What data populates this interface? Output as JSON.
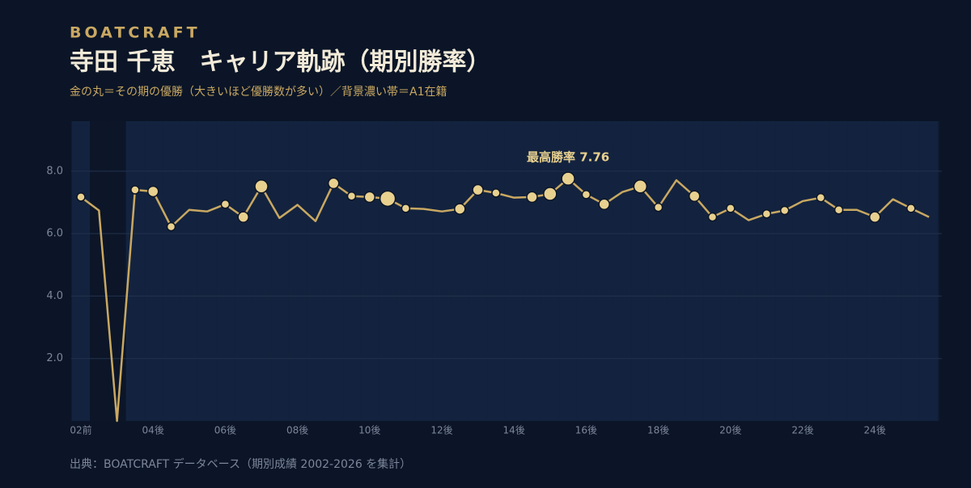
{
  "chart_data": {
    "type": "line",
    "brand": "BOATCRAFT",
    "title": "寺田 千恵　キャリア軌跡（期別勝率）",
    "subtitle": "金の丸＝その期の優勝（大きいほど優勝数が多い）／背景濃い帯＝A1在籍",
    "source": "出典：BOATCRAFT データベース（期別成績 2002-2026 を集計）",
    "annotation": "最高勝率 7.76",
    "categories": [
      "02前",
      null,
      null,
      null,
      "04後",
      null,
      null,
      null,
      "06後",
      null,
      null,
      null,
      "08後",
      null,
      null,
      null,
      "10後",
      null,
      null,
      null,
      "12後",
      null,
      null,
      null,
      "14後",
      null,
      null,
      null,
      "16後",
      null,
      null,
      null,
      "18後",
      null,
      null,
      null,
      "20後",
      null,
      null,
      null,
      "22後",
      null,
      null,
      null,
      "24後",
      null,
      null,
      null
    ],
    "a1": [
      true,
      false,
      false,
      true,
      true,
      true,
      true,
      true,
      true,
      true,
      true,
      true,
      true,
      true,
      true,
      true,
      true,
      true,
      true,
      true,
      true,
      true,
      true,
      true,
      true,
      true,
      true,
      true,
      true,
      true,
      true,
      true,
      true,
      true,
      true,
      true,
      true,
      true,
      true,
      true,
      true,
      true,
      true,
      true,
      true,
      true,
      true,
      true
    ],
    "series": [
      {
        "name": "勝率",
        "color": "#c9a862",
        "marker_color": "#e8d08f",
        "values": [
          7.17,
          6.74,
          0,
          7.4,
          7.35,
          6.22,
          6.76,
          6.71,
          6.94,
          6.53,
          7.51,
          6.5,
          6.92,
          6.4,
          7.61,
          7.2,
          7.17,
          7.12,
          6.81,
          6.79,
          6.71,
          6.79,
          7.4,
          7.3,
          7.15,
          7.17,
          7.27,
          7.76,
          7.25,
          6.94,
          7.33,
          7.51,
          6.84,
          7.71,
          7.2,
          6.53,
          6.81,
          6.43,
          6.63,
          6.74,
          7.04,
          7.15,
          6.76,
          6.76,
          6.53,
          7.1,
          6.81,
          6.53
        ],
        "wins": [
          1,
          null,
          null,
          1,
          2,
          1,
          null,
          null,
          1,
          2,
          3,
          null,
          null,
          null,
          2,
          1,
          2,
          4,
          1,
          null,
          null,
          2,
          2,
          1,
          null,
          2,
          3,
          3,
          1,
          2,
          null,
          3,
          1,
          null,
          2,
          1,
          1,
          null,
          1,
          1,
          null,
          1,
          1,
          null,
          2,
          null,
          1,
          null
        ]
      }
    ],
    "ylim": [
      0,
      9.6
    ],
    "yticks": [
      {
        "value": 2,
        "label": "2.0"
      },
      {
        "value": 4,
        "label": "4.0"
      },
      {
        "value": 6,
        "label": "6.0"
      },
      {
        "value": 8,
        "label": "8.0"
      }
    ],
    "grid": true
  }
}
